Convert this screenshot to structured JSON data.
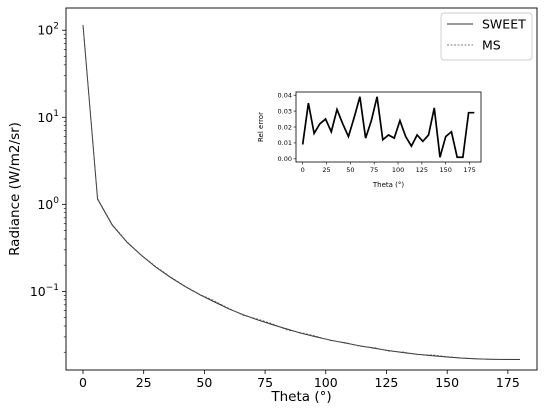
{
  "chart_data": [
    {
      "type": "line",
      "xlabel": "Theta (°)",
      "ylabel": "Radiance (W/m2/sr)",
      "yscale": "log",
      "xlim": [
        -7,
        187
      ],
      "ylim": [
        0.0125,
        180
      ],
      "x_ticks": [
        "0",
        "25",
        "50",
        "75",
        "100",
        "125",
        "150",
        "175"
      ],
      "y_ticks": [
        {
          "base": "10",
          "exp": "2"
        },
        {
          "base": "10",
          "exp": "1"
        },
        {
          "base": "10",
          "exp": "0"
        },
        {
          "base": "10",
          "exp": "−1"
        }
      ],
      "legend_position": "top-right",
      "grid": false,
      "x": [
        0,
        6,
        12,
        18,
        24,
        30,
        36,
        42,
        48,
        54,
        60,
        66,
        72,
        78,
        84,
        90,
        96,
        102,
        108,
        114,
        120,
        126,
        132,
        138,
        144,
        150,
        156,
        162,
        168,
        174,
        180
      ],
      "series": [
        {
          "name": "SWEET",
          "style": "solid",
          "color": "#333333",
          "values": [
            115,
            1.15,
            0.58,
            0.37,
            0.26,
            0.19,
            0.145,
            0.114,
            0.092,
            0.076,
            0.063,
            0.054,
            0.047,
            0.0415,
            0.037,
            0.033,
            0.03,
            0.0275,
            0.0255,
            0.0237,
            0.0222,
            0.0209,
            0.0198,
            0.0189,
            0.0182,
            0.0176,
            0.0171,
            0.0168,
            0.0166,
            0.0165,
            0.0165
          ]
        },
        {
          "name": "MS",
          "style": "dashed",
          "color": "#555555",
          "values": [
            114,
            1.17,
            0.59,
            0.375,
            0.262,
            0.193,
            0.147,
            0.115,
            0.093,
            0.078,
            0.064,
            0.053,
            0.048,
            0.0425,
            0.036,
            0.0335,
            0.0306,
            0.0272,
            0.0259,
            0.0234,
            0.0226,
            0.0206,
            0.0201,
            0.0188,
            0.0186,
            0.0178,
            0.0172,
            0.0169,
            0.0165,
            0.0166,
            0.0166
          ]
        }
      ]
    },
    {
      "type": "line",
      "xlabel": "Theta (°)",
      "ylabel": "Rel error",
      "xlim": [
        -7,
        187
      ],
      "ylim": [
        -0.002,
        0.042
      ],
      "x_ticks": [
        "0",
        "25",
        "50",
        "75",
        "100",
        "125",
        "150",
        "175"
      ],
      "y_ticks": [
        "0.00",
        "0.01",
        "0.02",
        "0.03",
        "0.04"
      ],
      "x": [
        0,
        6,
        12,
        18,
        24,
        30,
        36,
        42,
        48,
        54,
        60,
        66,
        72,
        78,
        84,
        90,
        96,
        102,
        108,
        114,
        120,
        126,
        132,
        138,
        144,
        150,
        156,
        162,
        168,
        174,
        180
      ],
      "series": [
        {
          "color": "#000000",
          "values": [
            0.009,
            0.035,
            0.016,
            0.022,
            0.025,
            0.017,
            0.031,
            0.022,
            0.014,
            0.026,
            0.039,
            0.013,
            0.024,
            0.039,
            0.012,
            0.015,
            0.013,
            0.024,
            0.014,
            0.008,
            0.015,
            0.011,
            0.015,
            0.032,
            0.001,
            0.014,
            0.017,
            0.001,
            0.001,
            0.029,
            0.029
          ]
        }
      ]
    }
  ]
}
